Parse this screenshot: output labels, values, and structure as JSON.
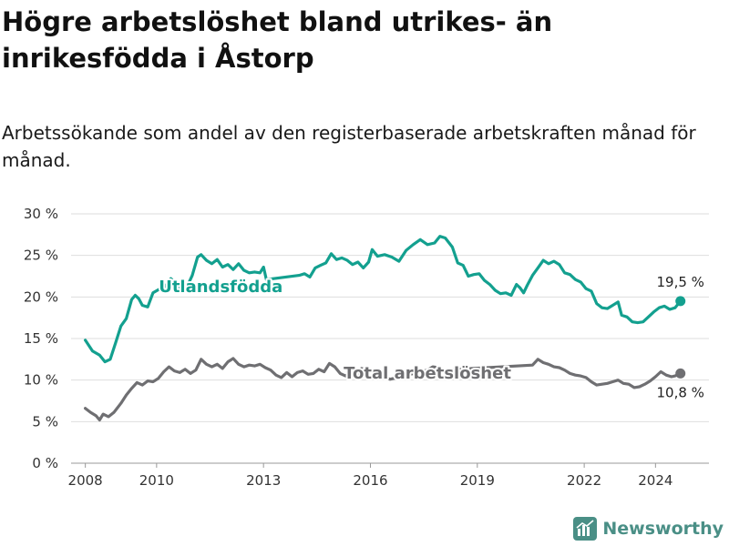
{
  "title": "Högre arbetslöshet bland utrikes- än inrikesfödda i Åstorp",
  "subtitle": "Arbetssökande som andel av den registerbaserade arbetskraften månad för månad.",
  "brand": {
    "name": "Newsworthy",
    "icon": "newsworthy-logo-icon"
  },
  "colors": {
    "foreign": "#13a08f",
    "total": "#6f6f72",
    "grid": "#dedede",
    "axis": "#999999"
  },
  "chart_data": {
    "type": "line",
    "x_unit": "year",
    "xlim": [
      2007.6,
      2025.5
    ],
    "ylim": [
      0,
      30
    ],
    "y_ticks": [
      0,
      5,
      10,
      15,
      20,
      25,
      30
    ],
    "y_tick_labels": [
      "0 %",
      "5 %",
      "10 %",
      "15 %",
      "20 %",
      "25 %",
      "30 %"
    ],
    "x_ticks": [
      2008,
      2010,
      2013,
      2016,
      2019,
      2022,
      2024
    ],
    "x_tick_labels": [
      "2008",
      "2010",
      "2013",
      "2016",
      "2019",
      "2022",
      "2024"
    ],
    "series": [
      {
        "name": "Utlandsfödda",
        "key": "foreign",
        "end_label": "19,5 %",
        "label_at": [
          2011.8,
          20.6
        ],
        "points": [
          [
            2008.0,
            14.8
          ],
          [
            2008.2,
            13.5
          ],
          [
            2008.4,
            13.0
          ],
          [
            2008.55,
            12.2
          ],
          [
            2008.7,
            12.5
          ],
          [
            2008.85,
            14.5
          ],
          [
            2009.0,
            16.5
          ],
          [
            2009.15,
            17.4
          ],
          [
            2009.3,
            19.7
          ],
          [
            2009.4,
            20.2
          ],
          [
            2009.5,
            19.8
          ],
          [
            2009.6,
            19.0
          ],
          [
            2009.75,
            18.8
          ],
          [
            2009.9,
            20.5
          ],
          [
            2010.1,
            21.0
          ],
          [
            2010.25,
            21.3
          ],
          [
            2010.4,
            22.2
          ],
          [
            2010.55,
            21.6
          ],
          [
            2010.7,
            21.0
          ],
          [
            2010.85,
            21.2
          ],
          [
            2011.0,
            22.6
          ],
          [
            2011.15,
            24.8
          ],
          [
            2011.25,
            25.1
          ],
          [
            2011.4,
            24.4
          ],
          [
            2011.55,
            24.0
          ],
          [
            2011.7,
            24.5
          ],
          [
            2011.85,
            23.6
          ],
          [
            2012.0,
            23.9
          ],
          [
            2012.15,
            23.3
          ],
          [
            2012.3,
            24.0
          ],
          [
            2012.45,
            23.2
          ],
          [
            2012.6,
            22.9
          ],
          [
            2012.75,
            23.0
          ],
          [
            2012.9,
            22.9
          ],
          [
            2013.0,
            23.6
          ],
          [
            2013.08,
            22.1
          ],
          [
            2014.0,
            22.6
          ],
          [
            2014.15,
            22.8
          ],
          [
            2014.3,
            22.4
          ],
          [
            2014.45,
            23.5
          ],
          [
            2014.6,
            23.8
          ],
          [
            2014.75,
            24.1
          ],
          [
            2014.9,
            25.2
          ],
          [
            2015.05,
            24.5
          ],
          [
            2015.2,
            24.7
          ],
          [
            2015.35,
            24.4
          ],
          [
            2015.5,
            23.9
          ],
          [
            2015.65,
            24.2
          ],
          [
            2015.8,
            23.5
          ],
          [
            2015.95,
            24.2
          ],
          [
            2016.05,
            25.7
          ],
          [
            2016.2,
            24.9
          ],
          [
            2016.4,
            25.1
          ],
          [
            2016.6,
            24.8
          ],
          [
            2016.8,
            24.3
          ],
          [
            2017.0,
            25.6
          ],
          [
            2017.2,
            26.3
          ],
          [
            2017.4,
            26.9
          ],
          [
            2017.6,
            26.3
          ],
          [
            2017.8,
            26.5
          ],
          [
            2017.95,
            27.3
          ],
          [
            2018.1,
            27.1
          ],
          [
            2018.3,
            26.0
          ],
          [
            2018.45,
            24.1
          ],
          [
            2018.6,
            23.8
          ],
          [
            2018.75,
            22.5
          ],
          [
            2018.9,
            22.7
          ],
          [
            2019.05,
            22.8
          ],
          [
            2019.2,
            22.0
          ],
          [
            2019.35,
            21.5
          ],
          [
            2019.5,
            20.8
          ],
          [
            2019.65,
            20.4
          ],
          [
            2019.8,
            20.5
          ],
          [
            2019.95,
            20.2
          ],
          [
            2020.1,
            21.5
          ],
          [
            2020.2,
            21.1
          ],
          [
            2020.3,
            20.5
          ],
          [
            2020.4,
            21.4
          ],
          [
            2020.55,
            22.6
          ],
          [
            2020.7,
            23.5
          ],
          [
            2020.85,
            24.4
          ],
          [
            2021.0,
            24.0
          ],
          [
            2021.15,
            24.3
          ],
          [
            2021.3,
            23.9
          ],
          [
            2021.45,
            22.9
          ],
          [
            2021.6,
            22.7
          ],
          [
            2021.75,
            22.1
          ],
          [
            2021.9,
            21.8
          ],
          [
            2022.05,
            21.0
          ],
          [
            2022.2,
            20.7
          ],
          [
            2022.35,
            19.2
          ],
          [
            2022.5,
            18.7
          ],
          [
            2022.65,
            18.6
          ],
          [
            2022.8,
            19.0
          ],
          [
            2022.95,
            19.4
          ],
          [
            2023.05,
            17.8
          ],
          [
            2023.2,
            17.6
          ],
          [
            2023.35,
            17.0
          ],
          [
            2023.5,
            16.9
          ],
          [
            2023.65,
            17.0
          ],
          [
            2023.8,
            17.6
          ],
          [
            2023.95,
            18.2
          ],
          [
            2024.1,
            18.7
          ],
          [
            2024.25,
            18.9
          ],
          [
            2024.4,
            18.5
          ],
          [
            2024.55,
            18.7
          ],
          [
            2024.7,
            19.5
          ]
        ]
      },
      {
        "name": "Total arbetslöshet",
        "key": "total",
        "end_label": "10,8 %",
        "label_at": [
          2017.6,
          10.2
        ],
        "points": [
          [
            2008.0,
            6.6
          ],
          [
            2008.15,
            6.1
          ],
          [
            2008.3,
            5.7
          ],
          [
            2008.4,
            5.2
          ],
          [
            2008.5,
            5.9
          ],
          [
            2008.65,
            5.6
          ],
          [
            2008.8,
            6.1
          ],
          [
            2009.0,
            7.2
          ],
          [
            2009.15,
            8.2
          ],
          [
            2009.3,
            9.0
          ],
          [
            2009.45,
            9.7
          ],
          [
            2009.6,
            9.4
          ],
          [
            2009.75,
            9.9
          ],
          [
            2009.9,
            9.8
          ],
          [
            2010.05,
            10.2
          ],
          [
            2010.2,
            11.0
          ],
          [
            2010.35,
            11.6
          ],
          [
            2010.5,
            11.1
          ],
          [
            2010.65,
            10.9
          ],
          [
            2010.8,
            11.3
          ],
          [
            2010.95,
            10.8
          ],
          [
            2011.1,
            11.2
          ],
          [
            2011.25,
            12.5
          ],
          [
            2011.4,
            11.9
          ],
          [
            2011.55,
            11.6
          ],
          [
            2011.7,
            11.9
          ],
          [
            2011.85,
            11.4
          ],
          [
            2012.0,
            12.2
          ],
          [
            2012.15,
            12.6
          ],
          [
            2012.3,
            11.9
          ],
          [
            2012.45,
            11.6
          ],
          [
            2012.6,
            11.8
          ],
          [
            2012.75,
            11.7
          ],
          [
            2012.9,
            11.9
          ],
          [
            2013.05,
            11.5
          ],
          [
            2013.2,
            11.2
          ],
          [
            2013.35,
            10.6
          ],
          [
            2013.5,
            10.3
          ],
          [
            2013.65,
            10.9
          ],
          [
            2013.8,
            10.4
          ],
          [
            2013.95,
            10.9
          ],
          [
            2014.1,
            11.1
          ],
          [
            2014.25,
            10.7
          ],
          [
            2014.4,
            10.8
          ],
          [
            2014.55,
            11.3
          ],
          [
            2014.7,
            11.0
          ],
          [
            2014.85,
            12.0
          ],
          [
            2015.0,
            11.6
          ],
          [
            2015.15,
            10.8
          ],
          [
            2015.3,
            10.5
          ],
          [
            2015.45,
            11.0
          ],
          [
            2015.6,
            10.4
          ],
          [
            2015.75,
            11.4
          ],
          [
            2015.9,
            11.2
          ],
          [
            2016.05,
            11.0
          ],
          [
            2016.2,
            10.6
          ],
          [
            2016.35,
            10.4
          ],
          [
            2016.55,
            10.1
          ],
          [
            2017.6,
            11.2
          ],
          [
            2017.75,
            11.6
          ],
          [
            2017.9,
            11.5
          ],
          [
            2018.05,
            11.2
          ],
          [
            2020.55,
            11.8
          ],
          [
            2020.7,
            12.5
          ],
          [
            2020.85,
            12.1
          ],
          [
            2021.0,
            11.9
          ],
          [
            2021.15,
            11.6
          ],
          [
            2021.3,
            11.5
          ],
          [
            2021.45,
            11.2
          ],
          [
            2021.6,
            10.8
          ],
          [
            2021.75,
            10.6
          ],
          [
            2021.9,
            10.5
          ],
          [
            2022.05,
            10.3
          ],
          [
            2022.2,
            9.8
          ],
          [
            2022.35,
            9.4
          ],
          [
            2022.5,
            9.5
          ],
          [
            2022.65,
            9.6
          ],
          [
            2022.8,
            9.8
          ],
          [
            2022.95,
            10.0
          ],
          [
            2023.1,
            9.6
          ],
          [
            2023.25,
            9.5
          ],
          [
            2023.4,
            9.1
          ],
          [
            2023.55,
            9.2
          ],
          [
            2023.7,
            9.5
          ],
          [
            2023.85,
            9.9
          ],
          [
            2024.0,
            10.4
          ],
          [
            2024.15,
            11.0
          ],
          [
            2024.3,
            10.6
          ],
          [
            2024.45,
            10.4
          ],
          [
            2024.55,
            10.5
          ],
          [
            2024.7,
            10.8
          ]
        ]
      }
    ]
  }
}
